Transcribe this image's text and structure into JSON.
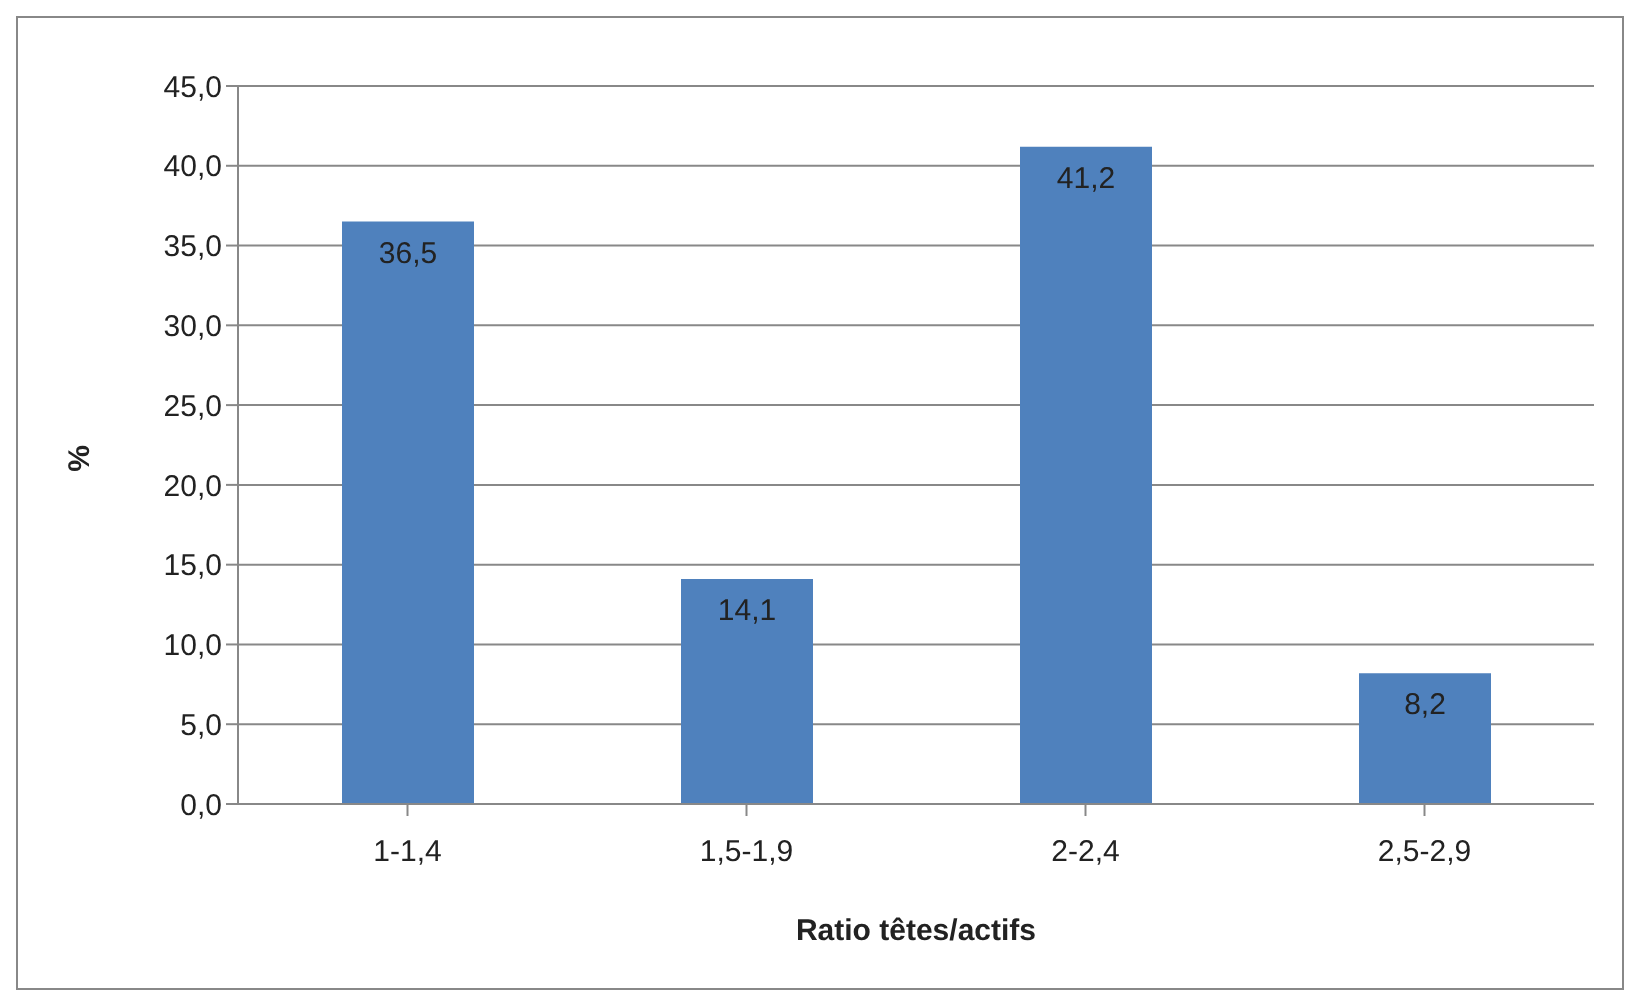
{
  "chart_data": {
    "type": "bar",
    "xlabel": "Ratio têtes/actifs",
    "ylabel": "%",
    "categories": [
      "1-1,4",
      "1,5-1,9",
      "2-2,4",
      "2,5-2,9"
    ],
    "values": [
      36.5,
      14.1,
      41.2,
      8.2
    ],
    "value_labels": [
      "36,5",
      "14,1",
      "41,2",
      "8,2"
    ],
    "color": "#4f81bd",
    "ylim": [
      0,
      45
    ],
    "yticks": [
      {
        "value": 0,
        "label": "0,0"
      },
      {
        "value": 5,
        "label": "5,0"
      },
      {
        "value": 10,
        "label": "10,0"
      },
      {
        "value": 15,
        "label": "15,0"
      },
      {
        "value": 20,
        "label": "20,0"
      },
      {
        "value": 25,
        "label": "25,0"
      },
      {
        "value": 30,
        "label": "30,0"
      },
      {
        "value": 35,
        "label": "35,0"
      },
      {
        "value": 40,
        "label": "40,0"
      },
      {
        "value": 45,
        "label": "45,0"
      }
    ],
    "grid": "y",
    "legend": false
  }
}
